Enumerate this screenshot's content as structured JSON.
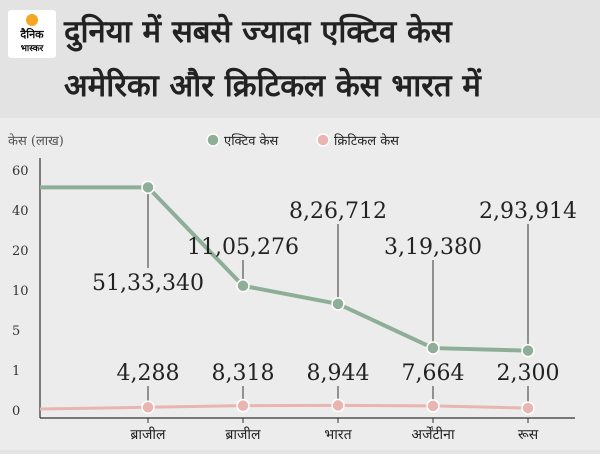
{
  "header": {
    "logo_line1": "दैनिक",
    "logo_line2": "भास्कर",
    "title_line1": "दुनिया में सबसे ज्यादा एक्टिव केस",
    "title_line2": "अमेरिका और क्रिटिकल केस भारत में"
  },
  "colors": {
    "active": "#8fae98",
    "critical": "#e8b5b1",
    "axis": "#333333",
    "background": "#ececec"
  },
  "chart_data": {
    "type": "line",
    "ylabel": "केस (लाख)",
    "y_ticks": [
      "60",
      "40",
      "20",
      "10",
      "5",
      "1",
      "0"
    ],
    "categories": [
      "ब्राजील",
      "ब्राजील",
      "भारत",
      "अर्जेंटीना",
      "रूस"
    ],
    "legend_position": "top",
    "series": [
      {
        "name": "एक्टिव केस",
        "values": [
          5133340,
          1105276,
          826712,
          319380,
          293914
        ],
        "labels": [
          "51,33,340",
          "11,05,276",
          "8,26,712",
          "3,19,380",
          "2,93,914"
        ],
        "start_value": 5133340
      },
      {
        "name": "क्रिटिकल केस",
        "values": [
          4288,
          8318,
          8944,
          7664,
          2300
        ],
        "labels": [
          "4,288",
          "8,318",
          "8,944",
          "7,664",
          "2,300"
        ]
      }
    ]
  }
}
